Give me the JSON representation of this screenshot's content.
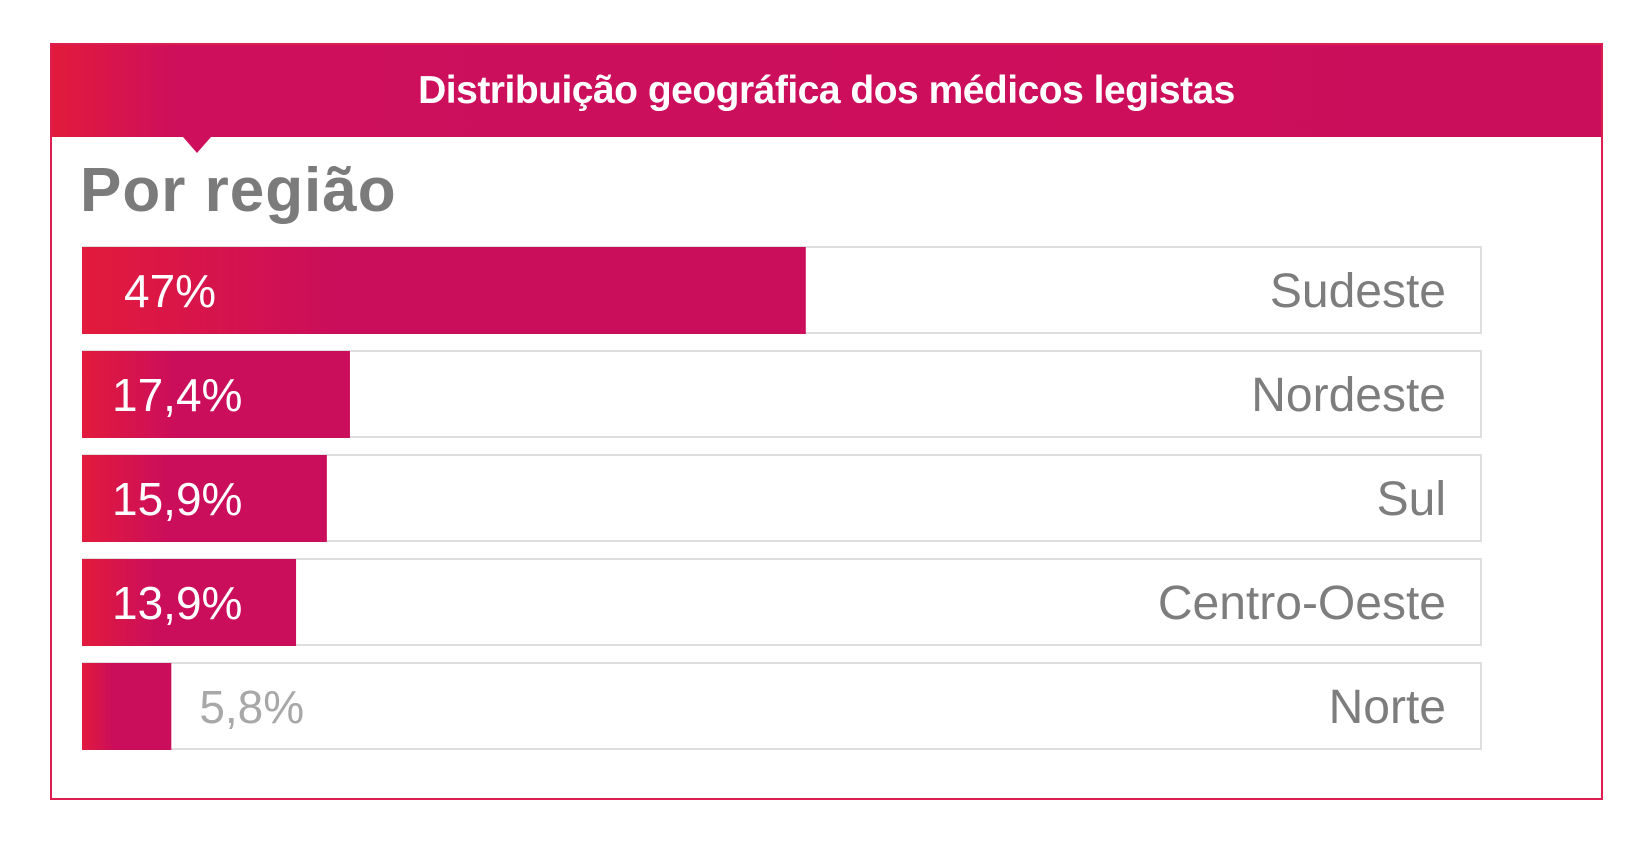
{
  "header": {
    "title": "Distribuição geográfica dos médicos legistas"
  },
  "subtitle": "Por região",
  "colors": {
    "bar_start": "#e21a3c",
    "bar_end": "#cb0e5b",
    "track_border": "#dedede",
    "label_inside": "#ffffff",
    "label_outside": "#a8a8a8",
    "region_label": "#7d7d7d"
  },
  "chart_data": {
    "type": "bar",
    "orientation": "horizontal",
    "title": "Distribuição geográfica dos médicos legistas",
    "subtitle": "Por região",
    "unit": "%",
    "xlim": [
      0,
      100
    ],
    "categories": [
      "Sudeste",
      "Nordeste",
      "Sul",
      "Centro-Oeste",
      "Norte"
    ],
    "values": [
      47,
      17.4,
      15.9,
      13.9,
      5.8
    ],
    "value_labels": [
      "47%",
      "17,4%",
      "15,9%",
      "13,9%",
      "5,8%"
    ]
  }
}
